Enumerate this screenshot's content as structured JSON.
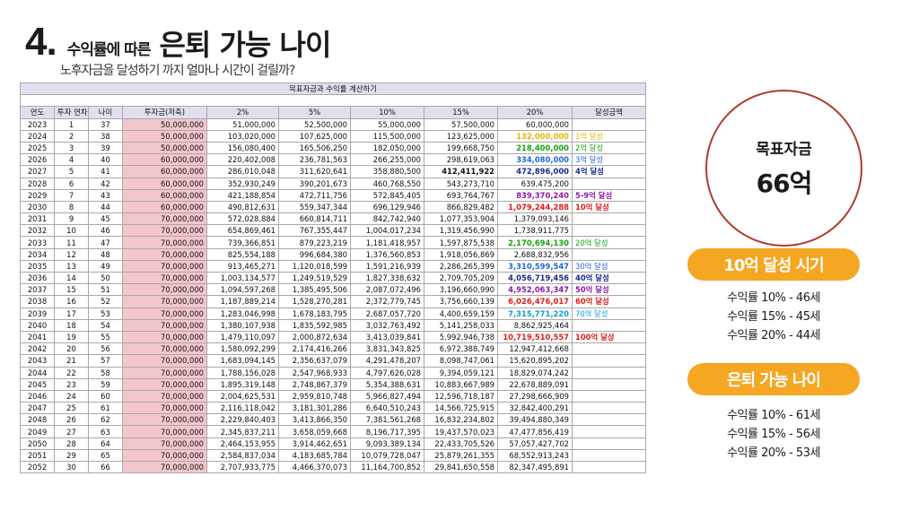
{
  "title": {
    "number": "4.",
    "prefix": "수익률에 따른",
    "main": "은퇴 가능 나이"
  },
  "subtitle": "노후자금을 달성하기 까지 얼마나 시간이 걸릴까?",
  "table": {
    "caption": "목표자금과 수익률 계산하기",
    "columns": [
      "연도",
      "투자 연차",
      "나이",
      "투자금(저축)",
      "2%",
      "5%",
      "10%",
      "15%",
      "20%",
      "달성금액"
    ],
    "colors": {
      "yellow": "#e0b800",
      "green": "#14a314",
      "blue": "#1e66d8",
      "navy": "#1a2a8c",
      "purple": "#8a1aa8",
      "red": "#e01a1a",
      "cyan": "#0aa0d8"
    },
    "rows": [
      {
        "year": "2023",
        "n": "1",
        "age": "37",
        "inv": "50,000,000",
        "p2": "51,000,000",
        "p5": "52,500,000",
        "p10": "55,000,000",
        "p15": "57,500,000",
        "p20": "60,000,000",
        "ach": ""
      },
      {
        "year": "2024",
        "n": "2",
        "age": "38",
        "inv": "50,000,000",
        "p2": "103,020,000",
        "p5": "107,625,000",
        "p10": "115,500,000",
        "p15": "123,625,000",
        "p20": "132,000,000",
        "ach": "1억 달성",
        "c": "yellow"
      },
      {
        "year": "2025",
        "n": "3",
        "age": "39",
        "inv": "50,000,000",
        "p2": "156,080,400",
        "p5": "165,506,250",
        "p10": "182,050,000",
        "p15": "199,668,750",
        "p20": "218,400,000",
        "ach": "2억 달성",
        "c": "green"
      },
      {
        "year": "2026",
        "n": "4",
        "age": "40",
        "inv": "60,000,000",
        "p2": "220,402,008",
        "p5": "236,781,563",
        "p10": "266,255,000",
        "p15": "298,619,063",
        "p20": "334,080,000",
        "ach": "3억 달성",
        "c": "blue"
      },
      {
        "year": "2027",
        "n": "5",
        "age": "41",
        "inv": "60,000,000",
        "p2": "286,010,048",
        "p5": "311,620,641",
        "p10": "358,880,500",
        "p15": "412,411,922",
        "p20": "472,896,000",
        "ach": "4억 달성",
        "c": "navy",
        "b15": true
      },
      {
        "year": "2028",
        "n": "6",
        "age": "42",
        "inv": "60,000,000",
        "p2": "352,930,249",
        "p5": "390,201,673",
        "p10": "460,768,550",
        "p15": "543,273,710",
        "p20": "639,475,200",
        "ach": ""
      },
      {
        "year": "2029",
        "n": "7",
        "age": "43",
        "inv": "60,000,000",
        "p2": "421,188,854",
        "p5": "472,711,756",
        "p10": "572,845,405",
        "p15": "693,764,767",
        "p20": "839,370,240",
        "ach": "5-9억 달성",
        "c": "purple"
      },
      {
        "year": "2030",
        "n": "8",
        "age": "44",
        "inv": "60,000,000",
        "p2": "490,812,631",
        "p5": "559,347,344",
        "p10": "696,129,946",
        "p15": "866,829,482",
        "p20": "1,079,244,288",
        "ach": "10억 달성",
        "c": "red"
      },
      {
        "year": "2031",
        "n": "9",
        "age": "45",
        "inv": "70,000,000",
        "p2": "572,028,884",
        "p5": "660,814,711",
        "p10": "842,742,940",
        "p15": "1,077,353,904",
        "p20": "1,379,093,146",
        "ach": ""
      },
      {
        "year": "2032",
        "n": "10",
        "age": "46",
        "inv": "70,000,000",
        "p2": "654,869,461",
        "p5": "767,355,447",
        "p10": "1,004,017,234",
        "p15": "1,319,456,990",
        "p20": "1,738,911,775",
        "ach": ""
      },
      {
        "year": "2033",
        "n": "11",
        "age": "47",
        "inv": "70,000,000",
        "p2": "739,366,851",
        "p5": "879,223,219",
        "p10": "1,181,418,957",
        "p15": "1,597,875,538",
        "p20": "2,170,694,130",
        "ach": "20억 달성",
        "c": "green"
      },
      {
        "year": "2034",
        "n": "12",
        "age": "48",
        "inv": "70,000,000",
        "p2": "825,554,188",
        "p5": "996,684,380",
        "p10": "1,376,560,853",
        "p15": "1,918,056,869",
        "p20": "2,688,832,956",
        "ach": ""
      },
      {
        "year": "2035",
        "n": "13",
        "age": "49",
        "inv": "70,000,000",
        "p2": "913,465,271",
        "p5": "1,120,018,599",
        "p10": "1,591,216,939",
        "p15": "2,286,265,399",
        "p20": "3,310,599,547",
        "ach": "30억 달성",
        "c": "blue"
      },
      {
        "year": "2036",
        "n": "14",
        "age": "50",
        "inv": "70,000,000",
        "p2": "1,003,134,577",
        "p5": "1,249,519,529",
        "p10": "1,827,338,632",
        "p15": "2,709,705,209",
        "p20": "4,056,719,456",
        "ach": "40억 달성",
        "c": "navy"
      },
      {
        "year": "2037",
        "n": "15",
        "age": "51",
        "inv": "70,000,000",
        "p2": "1,094,597,268",
        "p5": "1,385,495,506",
        "p10": "2,087,072,496",
        "p15": "3,196,660,990",
        "p20": "4,952,063,347",
        "ach": "50억 달성",
        "c": "purple"
      },
      {
        "year": "2038",
        "n": "16",
        "age": "52",
        "inv": "70,000,000",
        "p2": "1,187,889,214",
        "p5": "1,528,270,281",
        "p10": "2,372,779,745",
        "p15": "3,756,660,139",
        "p20": "6,026,476,017",
        "ach": "60억 달성",
        "c": "red"
      },
      {
        "year": "2039",
        "n": "17",
        "age": "53",
        "inv": "70,000,000",
        "p2": "1,283,046,998",
        "p5": "1,678,183,795",
        "p10": "2,687,057,720",
        "p15": "4,400,659,159",
        "p20": "7,315,771,220",
        "ach": "70억 달성",
        "c": "cyan"
      },
      {
        "year": "2040",
        "n": "18",
        "age": "54",
        "inv": "70,000,000",
        "p2": "1,380,107,938",
        "p5": "1,835,592,985",
        "p10": "3,032,763,492",
        "p15": "5,141,258,033",
        "p20": "8,862,925,464",
        "ach": ""
      },
      {
        "year": "2041",
        "n": "19",
        "age": "55",
        "inv": "70,000,000",
        "p2": "1,479,110,097",
        "p5": "2,000,872,634",
        "p10": "3,413,039,841",
        "p15": "5,992,946,738",
        "p20": "10,719,510,557",
        "ach": "100억 달성",
        "c": "red"
      },
      {
        "year": "2042",
        "n": "20",
        "age": "56",
        "inv": "70,000,000",
        "p2": "1,580,092,299",
        "p5": "2,174,416,266",
        "p10": "3,831,343,825",
        "p15": "6,972,388,749",
        "p20": "12,947,412,668",
        "ach": ""
      },
      {
        "year": "2043",
        "n": "21",
        "age": "57",
        "inv": "70,000,000",
        "p2": "1,683,094,145",
        "p5": "2,356,637,079",
        "p10": "4,291,478,207",
        "p15": "8,098,747,061",
        "p20": "15,620,895,202",
        "ach": ""
      },
      {
        "year": "2044",
        "n": "22",
        "age": "58",
        "inv": "70,000,000",
        "p2": "1,788,156,028",
        "p5": "2,547,968,933",
        "p10": "4,797,626,028",
        "p15": "9,394,059,121",
        "p20": "18,829,074,242",
        "ach": ""
      },
      {
        "year": "2045",
        "n": "23",
        "age": "59",
        "inv": "70,000,000",
        "p2": "1,895,319,148",
        "p5": "2,748,867,379",
        "p10": "5,354,388,631",
        "p15": "10,883,667,989",
        "p20": "22,678,889,091",
        "ach": ""
      },
      {
        "year": "2046",
        "n": "24",
        "age": "60",
        "inv": "70,000,000",
        "p2": "2,004,625,531",
        "p5": "2,959,810,748",
        "p10": "5,966,827,494",
        "p15": "12,596,718,187",
        "p20": "27,298,666,909",
        "ach": ""
      },
      {
        "year": "2047",
        "n": "25",
        "age": "61",
        "inv": "70,000,000",
        "p2": "2,116,118,042",
        "p5": "3,181,301,286",
        "p10": "6,640,510,243",
        "p15": "14,566,725,915",
        "p20": "32,842,400,291",
        "ach": ""
      },
      {
        "year": "2048",
        "n": "26",
        "age": "62",
        "inv": "70,000,000",
        "p2": "2,229,840,403",
        "p5": "3,413,866,350",
        "p10": "7,381,561,268",
        "p15": "16,832,234,802",
        "p20": "39,494,880,349",
        "ach": ""
      },
      {
        "year": "2049",
        "n": "27",
        "age": "63",
        "inv": "70,000,000",
        "p2": "2,345,837,211",
        "p5": "3,658,059,668",
        "p10": "8,196,717,395",
        "p15": "19,437,570,023",
        "p20": "47,477,856,419",
        "ach": ""
      },
      {
        "year": "2050",
        "n": "28",
        "age": "64",
        "inv": "70,000,000",
        "p2": "2,464,153,955",
        "p5": "3,914,462,651",
        "p10": "9,093,389,134",
        "p15": "22,433,705,526",
        "p20": "57,057,427,702",
        "ach": ""
      },
      {
        "year": "2051",
        "n": "29",
        "age": "65",
        "inv": "70,000,000",
        "p2": "2,584,837,034",
        "p5": "4,183,685,784",
        "p10": "10,079,728,047",
        "p15": "25,879,261,355",
        "p20": "68,552,913,243",
        "ach": ""
      },
      {
        "year": "2052",
        "n": "30",
        "age": "66",
        "inv": "70,000,000",
        "p2": "2,707,933,775",
        "p5": "4,466,370,073",
        "p10": "11,164,700,852",
        "p15": "29,841,650,558",
        "p20": "82,347,495,891",
        "ach": ""
      }
    ]
  },
  "goal": {
    "label": "목표자금",
    "amount": "66억"
  },
  "milestone": {
    "title": "10억 달성 시기",
    "lines": [
      "수익률 10% - 46세",
      "수익률 15% - 45세",
      "수익률 20% - 44세"
    ]
  },
  "retire": {
    "title": "은퇴 가능 나이",
    "lines": [
      "수익률 10% - 61세",
      "수익률 15% - 56세",
      "수익률 20% - 53세"
    ]
  },
  "accent": "#f5a623",
  "circle_border": "#b03a2e"
}
